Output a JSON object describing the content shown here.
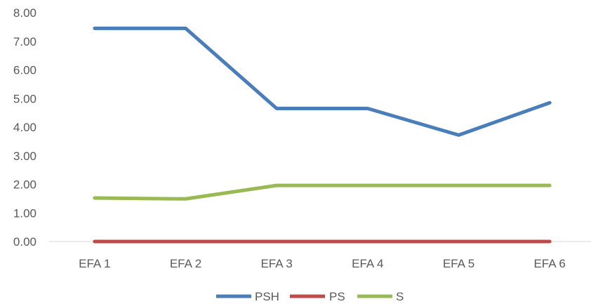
{
  "chart_data": {
    "type": "line",
    "title": "",
    "xlabel": "",
    "ylabel": "",
    "categories": [
      "EFA 1",
      "EFA 2",
      "EFA 3",
      "EFA 4",
      "EFA 5",
      "EFA 6"
    ],
    "ylim": [
      0,
      8
    ],
    "y_ticks": [
      "0.00",
      "1.00",
      "2.00",
      "3.00",
      "4.00",
      "5.00",
      "6.00",
      "7.00",
      "8.00"
    ],
    "grid": false,
    "legend_position": "bottom",
    "series": [
      {
        "name": "PSH",
        "color": "#4a7ebb",
        "values": [
          7.45,
          7.45,
          4.65,
          4.65,
          3.72,
          4.85
        ]
      },
      {
        "name": "PS",
        "color": "#be4b48",
        "values": [
          0,
          0,
          0,
          0,
          0,
          0
        ]
      },
      {
        "name": "S",
        "color": "#98b954",
        "values": [
          1.52,
          1.49,
          1.96,
          1.96,
          1.96,
          1.96
        ]
      }
    ]
  }
}
